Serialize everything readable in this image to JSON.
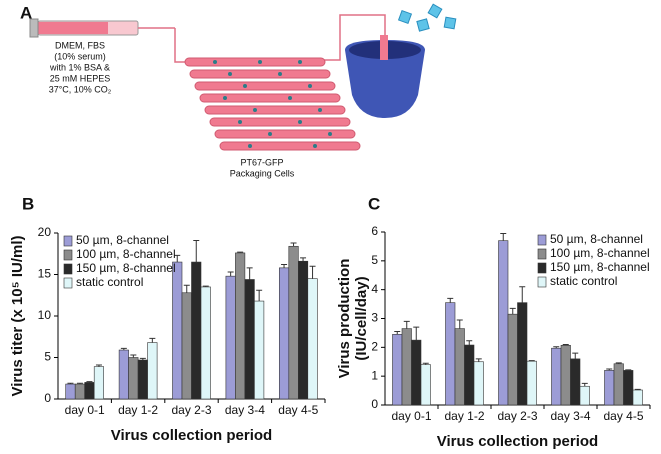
{
  "diagram": {
    "panel": "A",
    "medium": [
      "DMEM, FBS",
      "(10% serum)",
      "with 1% BSA &",
      "25 mM HEPES",
      "37°C, 10% CO₂"
    ],
    "cells": [
      "PT67-GFP",
      "Packaging Cells"
    ]
  },
  "chart_data": [
    {
      "type": "bar",
      "panel": "B",
      "xlabel": "Virus collection period",
      "ylabel": "Virus titer (x 10⁵ IU/ml)",
      "categories": [
        "day 0-1",
        "day 1-2",
        "day 2-3",
        "day 3-4",
        "day 4-5"
      ],
      "ylim": [
        0,
        20
      ],
      "yticks": [
        0,
        5,
        10,
        15,
        20
      ],
      "legend": "upper left",
      "series": [
        {
          "name": "50 µm, 8-channel",
          "color": "#9c9cd6",
          "values": [
            1.8,
            5.9,
            16.5,
            14.8,
            15.8
          ],
          "errors": [
            0.1,
            0.2,
            0.8,
            0.5,
            0.4
          ]
        },
        {
          "name": "100 µm, 8-channel",
          "color": "#8c8c8c",
          "values": [
            1.8,
            5.0,
            12.8,
            17.6,
            18.4
          ],
          "errors": [
            0.1,
            0.3,
            0.9,
            0.1,
            0.4
          ]
        },
        {
          "name": "150 µm, 8-channel",
          "color": "#2a2a2a",
          "values": [
            2.0,
            4.7,
            16.5,
            14.4,
            16.6
          ],
          "errors": [
            0.1,
            0.2,
            2.6,
            1.4,
            0.4
          ]
        },
        {
          "name": "static control",
          "color": "#dff6f8",
          "values": [
            3.9,
            6.8,
            13.5,
            11.8,
            14.5
          ],
          "errors": [
            0.2,
            0.5,
            0.1,
            1.3,
            1.5
          ]
        }
      ]
    },
    {
      "type": "bar",
      "panel": "C",
      "xlabel": "Virus collection period",
      "ylabel": [
        "Virus production",
        "(IU/cell/day)"
      ],
      "categories": [
        "day 0-1",
        "day 1-2",
        "day 2-3",
        "day 3-4",
        "day 4-5"
      ],
      "ylim": [
        0,
        6
      ],
      "yticks": [
        0,
        1,
        2,
        3,
        4,
        5,
        6
      ],
      "legend": "upper right",
      "series": [
        {
          "name": "50 µm, 8-channel",
          "color": "#9c9cd6",
          "values": [
            2.45,
            3.55,
            5.7,
            1.97,
            1.2
          ],
          "errors": [
            0.1,
            0.15,
            0.25,
            0.05,
            0.05
          ]
        },
        {
          "name": "100 µm, 8-channel",
          "color": "#8c8c8c",
          "values": [
            2.65,
            2.65,
            3.15,
            2.07,
            1.43
          ],
          "errors": [
            0.25,
            0.3,
            0.2,
            0.03,
            0.03
          ]
        },
        {
          "name": "150 µm, 8-channel",
          "color": "#2a2a2a",
          "values": [
            2.25,
            2.08,
            3.55,
            1.6,
            1.2
          ],
          "errors": [
            0.45,
            0.15,
            0.55,
            0.2,
            0.02
          ]
        },
        {
          "name": "static control",
          "color": "#dff6f8",
          "values": [
            1.4,
            1.5,
            1.52,
            0.65,
            0.52
          ],
          "errors": [
            0.05,
            0.1,
            0.02,
            0.1,
            0.02
          ]
        }
      ]
    }
  ]
}
